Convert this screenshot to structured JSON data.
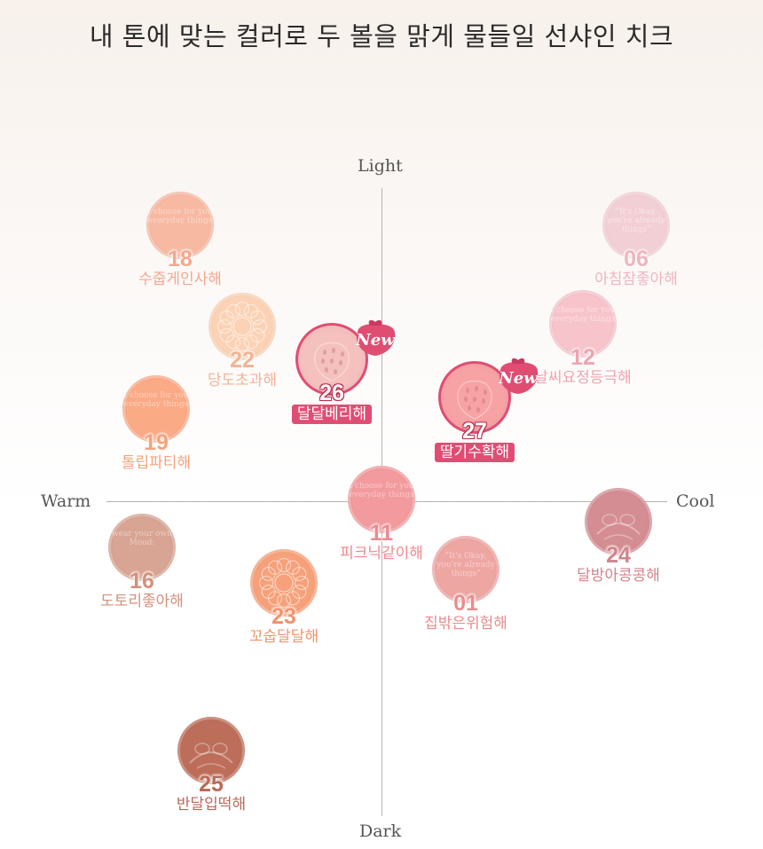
{
  "title": "내 톤에 맞는 컬러로 두 볼을 맑게 물들일 선샤인 치크",
  "axes": {
    "top": "Light",
    "bottom": "Dark",
    "left": "Warm",
    "right": "Cool"
  },
  "new_badge": "New",
  "shades": [
    {
      "id": "18",
      "number": "18",
      "name": "수줍게인사해",
      "disc_color": "#f7b9a2",
      "text_color": "#f4a88e",
      "motif": "text",
      "engraving": "I choose for you everyday things",
      "is_new": false
    },
    {
      "id": "06",
      "number": "06",
      "name": "아침잠좋아해",
      "disc_color": "#f2cfd4",
      "text_color": "#edb6bf",
      "motif": "text",
      "engraving": "\"It's Okay, you're already things\"",
      "is_new": false
    },
    {
      "id": "22",
      "number": "22",
      "name": "당도초과해",
      "disc_color": "#fbd2b5",
      "text_color": "#f4b393",
      "motif": "flower",
      "engraving": "",
      "is_new": false
    },
    {
      "id": "12",
      "number": "12",
      "name": "날씨요정등극해",
      "disc_color": "#f7c4cb",
      "text_color": "#f0a3b0",
      "motif": "text",
      "engraving": "I choose for you everyday things",
      "is_new": false
    },
    {
      "id": "26",
      "number": "26",
      "name": "달달베리해",
      "disc_color": "#f4c1bf",
      "text_color": "#e04d73",
      "motif": "berry",
      "engraving": "",
      "is_new": true
    },
    {
      "id": "27",
      "number": "27",
      "name": "딸기수확해",
      "disc_color": "#f7a3a6",
      "text_color": "#e04d73",
      "motif": "berry",
      "engraving": "",
      "is_new": true
    },
    {
      "id": "19",
      "number": "19",
      "name": "톨립파티해",
      "disc_color": "#fbaa86",
      "text_color": "#f6a27f",
      "motif": "text",
      "engraving": "I choose for you everyday things",
      "is_new": false
    },
    {
      "id": "11",
      "number": "11",
      "name": "피크닉같이해",
      "disc_color": "#f29a9d",
      "text_color": "#ec8a90",
      "motif": "text",
      "engraving": "I choose for you everyday things",
      "is_new": false
    },
    {
      "id": "24",
      "number": "24",
      "name": "달방아콩콩해",
      "disc_color": "#d48d92",
      "text_color": "#d0848b",
      "motif": "bunny",
      "engraving": "",
      "is_new": false
    },
    {
      "id": "16",
      "number": "16",
      "name": "도토리좋아해",
      "disc_color": "#d8a493",
      "text_color": "#d4907c",
      "motif": "text",
      "engraving": "wear your own Mood:",
      "is_new": false
    },
    {
      "id": "01",
      "number": "01",
      "name": "집밖은위험해",
      "disc_color": "#eea6a3",
      "text_color": "#e88d8f",
      "motif": "text",
      "engraving": "\"It's Okay, you're already things\"",
      "is_new": false
    },
    {
      "id": "23",
      "number": "23",
      "name": "꼬숩달달해",
      "disc_color": "#f6a17a",
      "text_color": "#f0936c",
      "motif": "flower",
      "engraving": "",
      "is_new": false
    },
    {
      "id": "25",
      "number": "25",
      "name": "반달입떡해",
      "disc_color": "#bd6e5a",
      "text_color": "#b86a58",
      "motif": "bunny",
      "engraving": "",
      "is_new": false
    }
  ]
}
